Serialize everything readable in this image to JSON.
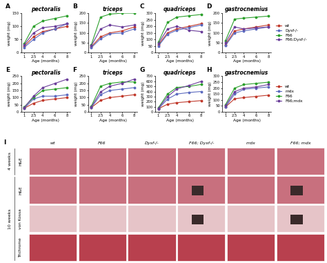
{
  "chart_data": [
    {
      "type": "line",
      "panel": "A",
      "title": "pectoralis",
      "xlabel": "Age (months)",
      "ylabel": "weight (mg)",
      "x": [
        1,
        2.5,
        4,
        6,
        8
      ],
      "xlim": [
        0.5,
        8.5
      ],
      "xticks": [
        1,
        2.5,
        4,
        6,
        8
      ],
      "ylim": [
        0,
        150
      ],
      "yticks": [
        0,
        50,
        100,
        150
      ],
      "marker": "o",
      "series": [
        {
          "name": "wt",
          "color": "#c0392b",
          "values": [
            25,
            60,
            80,
            90,
            100
          ]
        },
        {
          "name": "Dysf-/-",
          "color": "#5b6abf",
          "values": [
            20,
            50,
            75,
            90,
            110
          ]
        },
        {
          "name": "F66",
          "color": "#2ca02c",
          "values": [
            35,
            100,
            120,
            130,
            140
          ]
        },
        {
          "name": "F66;Dysf-/-",
          "color": "#6a3d9a",
          "values": [
            30,
            75,
            95,
            100,
            110
          ]
        }
      ]
    },
    {
      "type": "line",
      "panel": "B",
      "title": "triceps",
      "xlabel": "Age (months)",
      "ylabel": "weight (mg)",
      "x": [
        1,
        2.5,
        4,
        6,
        8
      ],
      "xlim": [
        0.5,
        8.5
      ],
      "xticks": [
        1,
        2.5,
        4,
        6,
        8
      ],
      "ylim": [
        0,
        200
      ],
      "yticks": [
        0,
        50,
        100,
        150,
        200
      ],
      "marker": "o",
      "series": [
        {
          "name": "wt",
          "color": "#c0392b",
          "values": [
            30,
            80,
            100,
            110,
            130
          ]
        },
        {
          "name": "Dysf-/-",
          "color": "#5b6abf",
          "values": [
            25,
            70,
            95,
            100,
            120
          ]
        },
        {
          "name": "F66",
          "color": "#2ca02c",
          "values": [
            40,
            180,
            195,
            200,
            200
          ]
        },
        {
          "name": "F66;Dysf-/-",
          "color": "#6a3d9a",
          "values": [
            35,
            120,
            140,
            130,
            140
          ]
        }
      ]
    },
    {
      "type": "line",
      "panel": "C",
      "title": "quadriceps",
      "xlabel": "Age (months)",
      "ylabel": "weight (mg)",
      "x": [
        1,
        2.5,
        4,
        6,
        8
      ],
      "xlim": [
        0.5,
        8.5
      ],
      "xticks": [
        1,
        2.5,
        4,
        6,
        8
      ],
      "ylim": [
        0,
        300
      ],
      "yticks": [
        0,
        50,
        100,
        150,
        200,
        250,
        300
      ],
      "marker": "o",
      "series": [
        {
          "name": "wt",
          "color": "#c0392b",
          "values": [
            60,
            150,
            180,
            200,
            220
          ]
        },
        {
          "name": "Dysf-/-",
          "color": "#5b6abf",
          "values": [
            50,
            140,
            170,
            190,
            210
          ]
        },
        {
          "name": "F66",
          "color": "#2ca02c",
          "values": [
            80,
            230,
            270,
            280,
            290
          ]
        },
        {
          "name": "F66;Dysf-/-",
          "color": "#6a3d9a",
          "values": [
            70,
            180,
            200,
            170,
            160
          ]
        }
      ]
    },
    {
      "type": "line",
      "panel": "D",
      "title": "gastrocnemius",
      "xlabel": "Age (months)",
      "ylabel": "weight (mg)",
      "x": [
        1,
        2.5,
        4,
        6,
        8
      ],
      "xlim": [
        0.5,
        8.5
      ],
      "xticks": [
        1,
        2.5,
        4,
        6,
        8
      ],
      "ylim": [
        0,
        200
      ],
      "yticks": [
        0,
        50,
        100,
        150,
        200
      ],
      "marker": "o",
      "legend": "right",
      "series": [
        {
          "name": "wt",
          "color": "#c0392b",
          "values": [
            40,
            110,
            120,
            130,
            140
          ]
        },
        {
          "name": "Dysf-/-",
          "color": "#5b6abf",
          "values": [
            35,
            100,
            110,
            120,
            130
          ]
        },
        {
          "name": "F66",
          "color": "#2ca02c",
          "values": [
            60,
            170,
            175,
            180,
            185
          ]
        },
        {
          "name": "F66;Dysf-/-",
          "color": "#6a3d9a",
          "values": [
            50,
            130,
            120,
            125,
            130
          ]
        }
      ]
    },
    {
      "type": "line",
      "panel": "E",
      "title": "pectoralis",
      "xlabel": "Age (months)",
      "ylabel": "weight (mg)",
      "x": [
        1,
        2.5,
        4,
        6,
        8
      ],
      "xlim": [
        0.5,
        8.5
      ],
      "xticks": [
        1,
        2.5,
        4,
        6,
        8
      ],
      "ylim": [
        0,
        250
      ],
      "yticks": [
        0,
        50,
        100,
        150,
        200,
        250
      ],
      "marker": "o",
      "series": [
        {
          "name": "wt",
          "color": "#c0392b",
          "values": [
            25,
            60,
            80,
            90,
            100
          ]
        },
        {
          "name": "mdx",
          "color": "#5b6abf",
          "values": [
            25,
            90,
            110,
            110,
            120
          ]
        },
        {
          "name": "F66",
          "color": "#2ca02c",
          "values": [
            35,
            100,
            150,
            160,
            170
          ]
        },
        {
          "name": "F66;mdx",
          "color": "#6a3d9a",
          "values": [
            30,
            110,
            170,
            200,
            230
          ]
        }
      ]
    },
    {
      "type": "line",
      "panel": "F",
      "title": "triceps",
      "xlabel": "Age (months)",
      "ylabel": "weight (mg)",
      "x": [
        1,
        2.5,
        4,
        6,
        8
      ],
      "xlim": [
        0.5,
        8.5
      ],
      "xticks": [
        1,
        2.5,
        4,
        6,
        8
      ],
      "ylim": [
        0,
        250
      ],
      "yticks": [
        0,
        50,
        100,
        150,
        200,
        250
      ],
      "marker": "o",
      "series": [
        {
          "name": "wt",
          "color": "#c0392b",
          "values": [
            30,
            80,
            100,
            110,
            120
          ]
        },
        {
          "name": "mdx",
          "color": "#5b6abf",
          "values": [
            30,
            120,
            150,
            160,
            170
          ]
        },
        {
          "name": "F66",
          "color": "#2ca02c",
          "values": [
            40,
            180,
            200,
            210,
            210
          ]
        },
        {
          "name": "F66;mdx",
          "color": "#6a3d9a",
          "values": [
            35,
            140,
            180,
            200,
            230
          ]
        }
      ]
    },
    {
      "type": "line",
      "panel": "G",
      "title": "quadriceps",
      "xlabel": "Age (months)",
      "ylabel": "weight (mg)",
      "x": [
        1,
        2.5,
        4,
        6,
        8
      ],
      "xlim": [
        0.5,
        8.5
      ],
      "xticks": [
        1,
        2.5,
        4,
        6,
        8
      ],
      "ylim": [
        0,
        700
      ],
      "yticks": [
        0,
        100,
        200,
        300,
        400,
        500,
        600,
        700
      ],
      "marker": "o",
      "series": [
        {
          "name": "wt",
          "color": "#c0392b",
          "values": [
            60,
            150,
            180,
            200,
            220
          ]
        },
        {
          "name": "mdx",
          "color": "#5b6abf",
          "values": [
            60,
            250,
            350,
            380,
            400
          ]
        },
        {
          "name": "F66",
          "color": "#2ca02c",
          "values": [
            80,
            350,
            480,
            500,
            540
          ]
        },
        {
          "name": "F66;mdx",
          "color": "#6a3d9a",
          "values": [
            70,
            300,
            450,
            520,
            600
          ]
        }
      ]
    },
    {
      "type": "line",
      "panel": "H",
      "title": "gastrocnemius",
      "xlabel": "Age (months)",
      "ylabel": "weight (mg)",
      "x": [
        1,
        2.5,
        4,
        6,
        8
      ],
      "xlim": [
        0.5,
        8.5
      ],
      "xticks": [
        1,
        2.5,
        4,
        6,
        8
      ],
      "ylim": [
        0,
        300
      ],
      "yticks": [
        0,
        50,
        100,
        150,
        200,
        250,
        300
      ],
      "marker": "o",
      "legend": "right",
      "series": [
        {
          "name": "wt",
          "color": "#c0392b",
          "values": [
            40,
            110,
            120,
            130,
            140
          ]
        },
        {
          "name": "mdx",
          "color": "#5b6abf",
          "values": [
            40,
            150,
            190,
            200,
            210
          ]
        },
        {
          "name": "F66",
          "color": "#2ca02c",
          "values": [
            60,
            200,
            230,
            240,
            250
          ]
        },
        {
          "name": "F66;mdx",
          "color": "#6a3d9a",
          "values": [
            50,
            170,
            200,
            210,
            230
          ]
        }
      ]
    }
  ],
  "panel_I": {
    "label": "I",
    "columns": [
      "wt",
      "F66",
      "Dysf-/-",
      "F66; Dysf-/-",
      "mdx",
      "F66; mdx"
    ],
    "rows": [
      {
        "group": "4 weeks",
        "stain": "H&E"
      },
      {
        "group": "10 weeks",
        "stain": "H&E"
      },
      {
        "group": "10 weeks",
        "stain": "von Kossa"
      },
      {
        "group": "10 weeks",
        "stain": "Trichrome"
      }
    ]
  }
}
